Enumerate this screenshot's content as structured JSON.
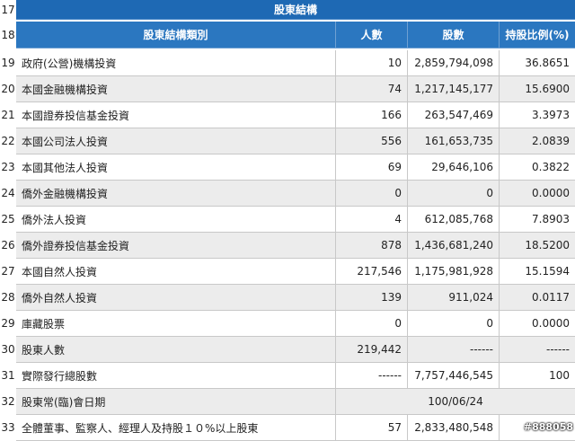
{
  "table": {
    "title_row": {
      "num": "17",
      "label": "股東結構"
    },
    "header_row": {
      "num": "18",
      "columns": [
        "股東結構類別",
        "人數",
        "股數",
        "持股比例(%)"
      ]
    },
    "rows": [
      {
        "num": "19",
        "category": "政府(公營)機構投資",
        "people": "10",
        "shares": "2,859,794,098",
        "ratio": "36.8651"
      },
      {
        "num": "20",
        "category": "本國金融機構投資",
        "people": "74",
        "shares": "1,217,145,177",
        "ratio": "15.6900"
      },
      {
        "num": "21",
        "category": "本國證券投信基金投資",
        "people": "166",
        "shares": "263,547,469",
        "ratio": "3.3973"
      },
      {
        "num": "22",
        "category": "本國公司法人投資",
        "people": "556",
        "shares": "161,653,735",
        "ratio": "2.0839"
      },
      {
        "num": "23",
        "category": "本國其他法人投資",
        "people": "69",
        "shares": "29,646,106",
        "ratio": "0.3822"
      },
      {
        "num": "24",
        "category": "僑外金融機構投資",
        "people": "0",
        "shares": "0",
        "ratio": "0.0000"
      },
      {
        "num": "25",
        "category": "僑外法人投資",
        "people": "4",
        "shares": "612,085,768",
        "ratio": "7.8903"
      },
      {
        "num": "26",
        "category": "僑外證券投信基金投資",
        "people": "878",
        "shares": "1,436,681,240",
        "ratio": "18.5200"
      },
      {
        "num": "27",
        "category": "本國自然人投資",
        "people": "217,546",
        "shares": "1,175,981,928",
        "ratio": "15.1594"
      },
      {
        "num": "28",
        "category": "僑外自然人投資",
        "people": "139",
        "shares": "911,024",
        "ratio": "0.0117"
      },
      {
        "num": "29",
        "category": "庫藏股票",
        "people": "0",
        "shares": "0",
        "ratio": "0.0000"
      },
      {
        "num": "30",
        "category": "股東人數",
        "people": "219,442",
        "shares": "------",
        "ratio": "------"
      },
      {
        "num": "31",
        "category": "實際發行總股數",
        "people": "------",
        "shares": "7,757,446,545",
        "ratio": "100"
      }
    ],
    "meeting_row": {
      "num": "32",
      "category": "股東常(臨)會日期",
      "value": "100/06/24"
    },
    "last_row": {
      "num": "33",
      "category": "全體董事、監察人、經理人及持股１０%以上股東",
      "people": "57",
      "shares": "2,833,480,548",
      "ratio": ""
    }
  },
  "watermark": "#888058"
}
